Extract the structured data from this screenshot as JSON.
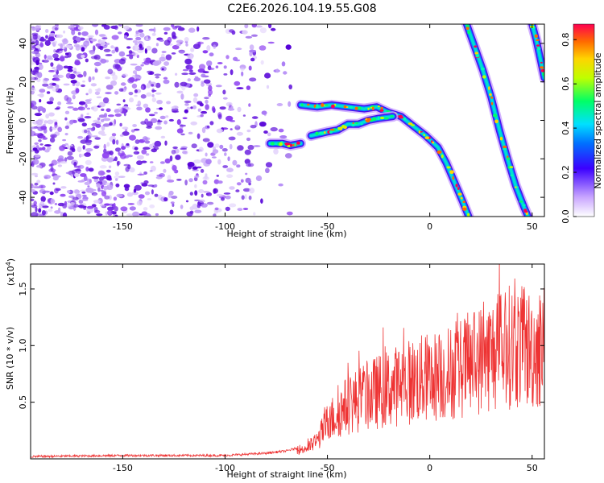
{
  "title": "C2E6.2026.104.19.55.G08",
  "chart_data": [
    {
      "type": "heatmap",
      "xlabel": "Height of straight line (km)",
      "ylabel": "Frequency (Hz)",
      "xlim": [
        -195,
        56
      ],
      "ylim": [
        -50,
        50
      ],
      "xticks": [
        -150,
        -100,
        -50,
        0,
        50
      ],
      "yticks": [
        -40,
        -20,
        0,
        20,
        40
      ],
      "colorbar": {
        "label": "Normalized spectral amplitude",
        "range": [
          0.0,
          0.87
        ],
        "ticks": [
          "0.0",
          "0.2",
          "0.4",
          "0.6",
          "0.8"
        ],
        "ticks_values": [
          0.0,
          0.2,
          0.4,
          0.6,
          0.8
        ]
      },
      "noise_region_x": [
        -195,
        -65
      ],
      "traces": [
        {
          "name": "left-lower-arc",
          "points": [
            [
              -78,
              -12
            ],
            [
              -72,
              -12
            ],
            [
              -68,
              -13
            ],
            [
              -63,
              -12
            ]
          ]
        },
        {
          "name": "main-descending-curve",
          "points": [
            [
              -63,
              8
            ],
            [
              -55,
              7
            ],
            [
              -48,
              8
            ],
            [
              -40,
              7
            ],
            [
              -32,
              6
            ],
            [
              -26,
              7
            ],
            [
              -20,
              4
            ],
            [
              -14,
              2
            ],
            [
              -8,
              -3
            ],
            [
              -2,
              -8
            ],
            [
              4,
              -14
            ],
            [
              8,
              -22
            ],
            [
              12,
              -32
            ],
            [
              16,
              -42
            ],
            [
              19,
              -50
            ]
          ]
        },
        {
          "name": "lower-branch",
          "points": [
            [
              -58,
              -8
            ],
            [
              -50,
              -6
            ],
            [
              -45,
              -5
            ],
            [
              -40,
              -2
            ],
            [
              -35,
              -2
            ],
            [
              -30,
              0
            ],
            [
              -25,
              1
            ],
            [
              -18,
              2
            ]
          ]
        },
        {
          "name": "middle-diagonal",
          "points": [
            [
              18,
              50
            ],
            [
              22,
              38
            ],
            [
              26,
              26
            ],
            [
              30,
              12
            ],
            [
              34,
              -5
            ],
            [
              38,
              -20
            ],
            [
              42,
              -34
            ],
            [
              46,
              -45
            ],
            [
              48,
              -50
            ]
          ]
        },
        {
          "name": "right-diagonal",
          "points": [
            [
              50,
              50
            ],
            [
              52,
              42
            ],
            [
              54,
              32
            ],
            [
              56,
              22
            ]
          ]
        }
      ]
    },
    {
      "type": "line",
      "xlabel": "Height of straight line (km)",
      "ylabel": "SNR (10 * v/v)",
      "scale_label": "(x10",
      "scale_exponent": "4",
      "xlim": [
        -195,
        56
      ],
      "ylim": [
        0,
        1.72
      ],
      "xticks": [
        -150,
        -100,
        -50,
        0,
        50
      ],
      "yticks": [
        "0.5",
        "1.0",
        "1.5"
      ],
      "yticks_values": [
        0.5,
        1.0,
        1.5
      ],
      "envelope": [
        [
          -195,
          0.02
        ],
        [
          -150,
          0.03
        ],
        [
          -100,
          0.03
        ],
        [
          -80,
          0.05
        ],
        [
          -70,
          0.07
        ],
        [
          -60,
          0.12
        ],
        [
          -55,
          0.2
        ],
        [
          -50,
          0.4
        ],
        [
          -45,
          0.5
        ],
        [
          -40,
          0.6
        ],
        [
          -30,
          0.7
        ],
        [
          -20,
          0.78
        ],
        [
          -10,
          0.85
        ],
        [
          0,
          0.9
        ],
        [
          10,
          0.95
        ],
        [
          20,
          1.05
        ],
        [
          30,
          1.15
        ],
        [
          40,
          1.25
        ],
        [
          50,
          1.2
        ],
        [
          56,
          1.25
        ]
      ],
      "color": "#ee3333"
    }
  ]
}
